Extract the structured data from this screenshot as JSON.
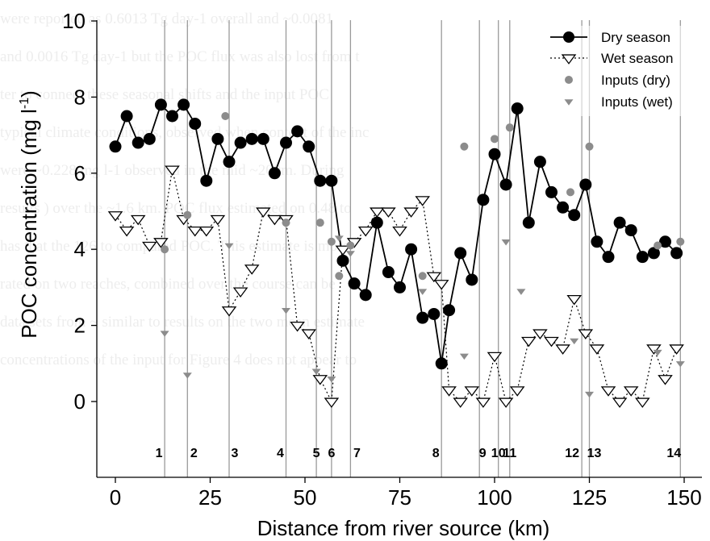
{
  "chart_data": {
    "type": "line",
    "xlabel": "Distance from river source (km)",
    "ylabel": "POC concentration (mg l",
    "ylabel_sup": "-1",
    "ylabel_close": ")",
    "xlim": [
      -3,
      153
    ],
    "ylim": [
      0,
      10
    ],
    "x_ticks": [
      0,
      25,
      50,
      75,
      100,
      125,
      150
    ],
    "y_ticks": [
      0,
      2,
      4,
      6,
      8,
      10
    ],
    "grid": false,
    "legend_position": "top-right",
    "series": [
      {
        "name": "Dry season",
        "marker": "filled-circle",
        "line": "solid",
        "points": [
          [
            0,
            6.7
          ],
          [
            3,
            7.5
          ],
          [
            6,
            6.8
          ],
          [
            9,
            6.9
          ],
          [
            12,
            7.8
          ],
          [
            15,
            7.5
          ],
          [
            18,
            7.8
          ],
          [
            21,
            7.3
          ],
          [
            24,
            5.8
          ],
          [
            27,
            6.9
          ],
          [
            30,
            6.3
          ],
          [
            33,
            6.8
          ],
          [
            36,
            6.9
          ],
          [
            39,
            6.9
          ],
          [
            42,
            6.0
          ],
          [
            45,
            6.8
          ],
          [
            48,
            7.1
          ],
          [
            51,
            6.7
          ],
          [
            54,
            5.8
          ],
          [
            57,
            5.8
          ],
          [
            60,
            3.7
          ],
          [
            63,
            3.1
          ],
          [
            66,
            2.8
          ],
          [
            69,
            4.7
          ],
          [
            72,
            3.4
          ],
          [
            75,
            3.0
          ],
          [
            78,
            4.0
          ],
          [
            81,
            2.2
          ],
          [
            84,
            2.3
          ],
          [
            86,
            1.0
          ],
          [
            88,
            2.4
          ],
          [
            91,
            3.9
          ],
          [
            94,
            3.2
          ],
          [
            97,
            5.3
          ],
          [
            100,
            6.5
          ],
          [
            103,
            5.7
          ],
          [
            106,
            7.7
          ],
          [
            109,
            4.7
          ],
          [
            112,
            6.3
          ],
          [
            115,
            5.5
          ],
          [
            118,
            5.1
          ],
          [
            121,
            4.9
          ],
          [
            124,
            5.7
          ],
          [
            127,
            4.2
          ],
          [
            130,
            3.8
          ],
          [
            133,
            4.7
          ],
          [
            136,
            4.5
          ],
          [
            139,
            3.8
          ],
          [
            142,
            3.9
          ],
          [
            145,
            4.2
          ],
          [
            148,
            3.9
          ]
        ]
      },
      {
        "name": "Wet season",
        "marker": "open-triangle-down",
        "line": "dotted",
        "points": [
          [
            0,
            4.9
          ],
          [
            3,
            4.5
          ],
          [
            6,
            4.8
          ],
          [
            9,
            4.1
          ],
          [
            12,
            4.2
          ],
          [
            15,
            6.1
          ],
          [
            18,
            4.8
          ],
          [
            21,
            4.5
          ],
          [
            24,
            4.5
          ],
          [
            27,
            4.8
          ],
          [
            30,
            2.4
          ],
          [
            33,
            2.9
          ],
          [
            36,
            3.5
          ],
          [
            39,
            5.0
          ],
          [
            42,
            4.8
          ],
          [
            45,
            4.8
          ],
          [
            48,
            2.0
          ],
          [
            51,
            1.8
          ],
          [
            54,
            0.6
          ],
          [
            57,
            0.0
          ],
          [
            60,
            4.0
          ],
          [
            63,
            4.2
          ],
          [
            66,
            4.5
          ],
          [
            69,
            5.0
          ],
          [
            72,
            5.0
          ],
          [
            75,
            4.5
          ],
          [
            78,
            5.0
          ],
          [
            81,
            5.3
          ],
          [
            84,
            3.3
          ],
          [
            86,
            3.1
          ],
          [
            88,
            0.3
          ],
          [
            91,
            0.0
          ],
          [
            94,
            0.3
          ],
          [
            97,
            0.0
          ],
          [
            100,
            1.2
          ],
          [
            103,
            0.0
          ],
          [
            106,
            0.3
          ],
          [
            109,
            1.6
          ],
          [
            112,
            1.8
          ],
          [
            115,
            1.6
          ],
          [
            118,
            1.4
          ],
          [
            121,
            2.7
          ],
          [
            124,
            1.8
          ],
          [
            127,
            1.4
          ],
          [
            130,
            0.3
          ],
          [
            133,
            0.0
          ],
          [
            136,
            0.3
          ],
          [
            139,
            0.0
          ],
          [
            142,
            1.4
          ],
          [
            145,
            0.6
          ],
          [
            148,
            1.4
          ]
        ]
      },
      {
        "name": "Inputs (dry)",
        "marker": "grey-circle",
        "line": "none",
        "points": [
          [
            13,
            4.0
          ],
          [
            19,
            4.9
          ],
          [
            29,
            7.5
          ],
          [
            45,
            4.7
          ],
          [
            54,
            4.7
          ],
          [
            57,
            4.2
          ],
          [
            59,
            3.3
          ],
          [
            62,
            4.1
          ],
          [
            81,
            3.3
          ],
          [
            92,
            6.7
          ],
          [
            100,
            6.9
          ],
          [
            104,
            7.2
          ],
          [
            120,
            5.5
          ],
          [
            125,
            6.7
          ],
          [
            143,
            4.1
          ],
          [
            149,
            4.2
          ]
        ]
      },
      {
        "name": "Inputs (wet)",
        "marker": "grey-triangle-down",
        "line": "none",
        "points": [
          [
            13,
            1.8
          ],
          [
            19,
            0.7
          ],
          [
            30,
            4.1
          ],
          [
            45,
            2.4
          ],
          [
            53,
            0.8
          ],
          [
            57,
            0.6
          ],
          [
            59,
            4.3
          ],
          [
            62,
            3.9
          ],
          [
            81,
            2.9
          ],
          [
            92,
            1.2
          ],
          [
            103,
            4.2
          ],
          [
            107,
            2.9
          ],
          [
            121,
            1.6
          ],
          [
            125,
            0.2
          ],
          [
            143,
            1.3
          ],
          [
            149,
            1.0
          ]
        ]
      }
    ],
    "input_markers": [
      {
        "label": "1",
        "x": 13
      },
      {
        "label": "2",
        "x": 19
      },
      {
        "label": "3",
        "x": 30
      },
      {
        "label": "4",
        "x": 45
      },
      {
        "label": "5",
        "x": 53
      },
      {
        "label": "6",
        "x": 57
      },
      {
        "label": "7",
        "x": 62
      },
      {
        "label": "8",
        "x": 86
      },
      {
        "label": "9",
        "x": 96
      },
      {
        "label": "10",
        "x": 101
      },
      {
        "label": "11",
        "x": 104
      },
      {
        "label": "12",
        "x": 123
      },
      {
        "label": "13",
        "x": 125
      },
      {
        "label": "14",
        "x": 149
      }
    ]
  },
  "colors": {
    "series_black": "#000000",
    "inputs_grey": "#8c8c8c",
    "vline": "#9a9a9a"
  },
  "background_text": [
    "were reported as 0.6013 Tg day-1 overall and ~0.0081",
    "and 0.0016 Tg day-1 but the POC flux was also lost from t",
    "ter to connect these seasonal shifts and the input POC",
    "typical climate conditions, observed when content of the inc",
    "were ~0.228 mg l-1 observed in the mid ~200m. During",
    "results ) over the ~1.6 km. POC flux estimated on 0.48 to",
    "has that the 126 to compared POC. This estimate is more",
    "rated on two reaches, combined over the course can be",
    "data sets from ~ similar to results on the two mean estimate",
    "concentrations of the input for Figure 4 does not appear to"
  ]
}
